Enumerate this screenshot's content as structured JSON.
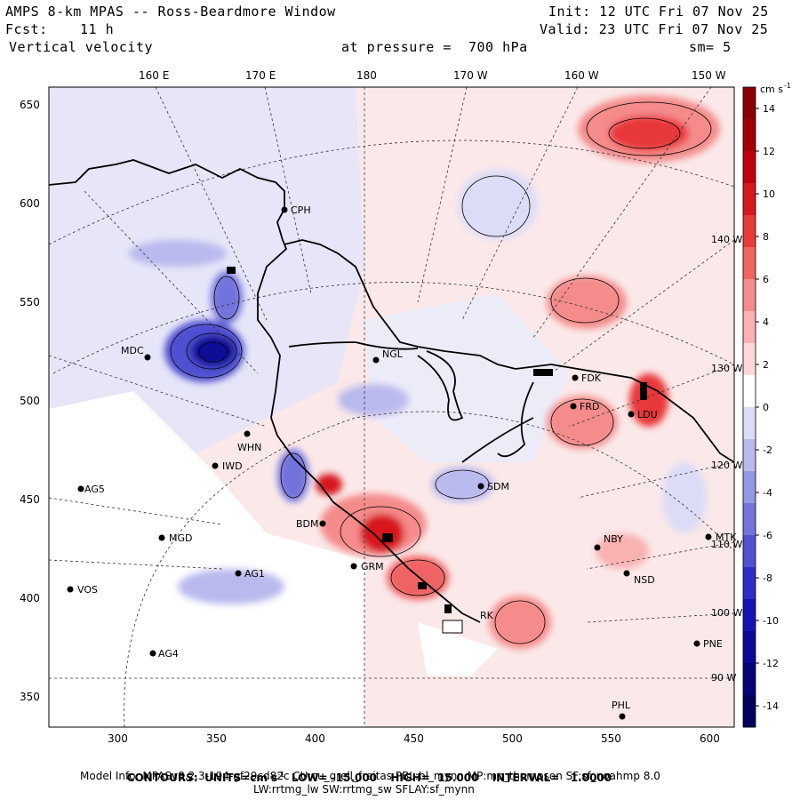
{
  "header": {
    "title": "AMPS 8-km MPAS -- Ross-Beardmore Window",
    "init": "Init: 12 UTC Fri 07 Nov 25",
    "fcst_label": "Fcst:",
    "fcst_value": "11 h",
    "valid": "Valid: 23 UTC Fri 07 Nov 25",
    "field": "Vertical velocity",
    "pressure": "at pressure =  700 hPa",
    "smoothing": "sm= 5"
  },
  "axes": {
    "longitude_labels": [
      "160 E",
      "170 E",
      "180",
      "170 W",
      "160 W",
      "150 W"
    ],
    "y_labels": [
      "650",
      "600",
      "550",
      "500",
      "450",
      "400",
      "350"
    ],
    "x_labels": [
      "300",
      "350",
      "400",
      "450",
      "500",
      "550",
      "600"
    ],
    "edge_longitudes": [
      "140 W",
      "130 W",
      "120 W",
      "110 W",
      "100 W",
      "90 W"
    ]
  },
  "colorbar": {
    "units": "cm s",
    "units_exp": "-1",
    "labels": [
      "14",
      "12",
      "10",
      "8",
      "6",
      "4",
      "2",
      "0",
      "-2",
      "-4",
      "-6",
      "-8",
      "-10",
      "-12",
      "-14"
    ],
    "colors": [
      "#8b0000",
      "#a30008",
      "#c00010",
      "#d7181e",
      "#e8393a",
      "#f06464",
      "#f58b8b",
      "#f9b1b1",
      "#fcd8d8",
      "#ffffff",
      "#dcdcf6",
      "#b9b9ee",
      "#9696e6",
      "#7373dc",
      "#5050d2",
      "#2d2dc8",
      "#1414b4",
      "#0a0a96",
      "#050578",
      "#00005a"
    ]
  },
  "stations": [
    {
      "code": "CPH"
    },
    {
      "code": "MDC"
    },
    {
      "code": "NGL"
    },
    {
      "code": "FDK"
    },
    {
      "code": "FRD"
    },
    {
      "code": "LDU"
    },
    {
      "code": "WHN"
    },
    {
      "code": "IWD"
    },
    {
      "code": "AG5"
    },
    {
      "code": "SDM"
    },
    {
      "code": "BDM"
    },
    {
      "code": "MGD"
    },
    {
      "code": "GRM"
    },
    {
      "code": "AG1"
    },
    {
      "code": "NBY"
    },
    {
      "code": "MTK"
    },
    {
      "code": "NSD"
    },
    {
      "code": "VOS"
    },
    {
      "code": "PNE"
    },
    {
      "code": "AG4"
    },
    {
      "code": "PHL"
    },
    {
      "code": "RK"
    }
  ],
  "footer": {
    "contours_label": "CONTOURS:",
    "units_label": "UNITS=cm s",
    "units_exp": "-1",
    "low": "LOW= -15.000",
    "high": "HIGH=  15.000",
    "interval": "INTERVAL=   1.0000",
    "model_info": "Model Info: MPASv8.2.3-194-gf29cd82c CU:cu_grell_freitas PBL:bl_mynn MP:mp_thompson SF:sf_noahmp 8.0",
    "model_info2": "LW:rrtmg_lw SW:rrtmg_sw SFLAY:sf_mynn"
  }
}
